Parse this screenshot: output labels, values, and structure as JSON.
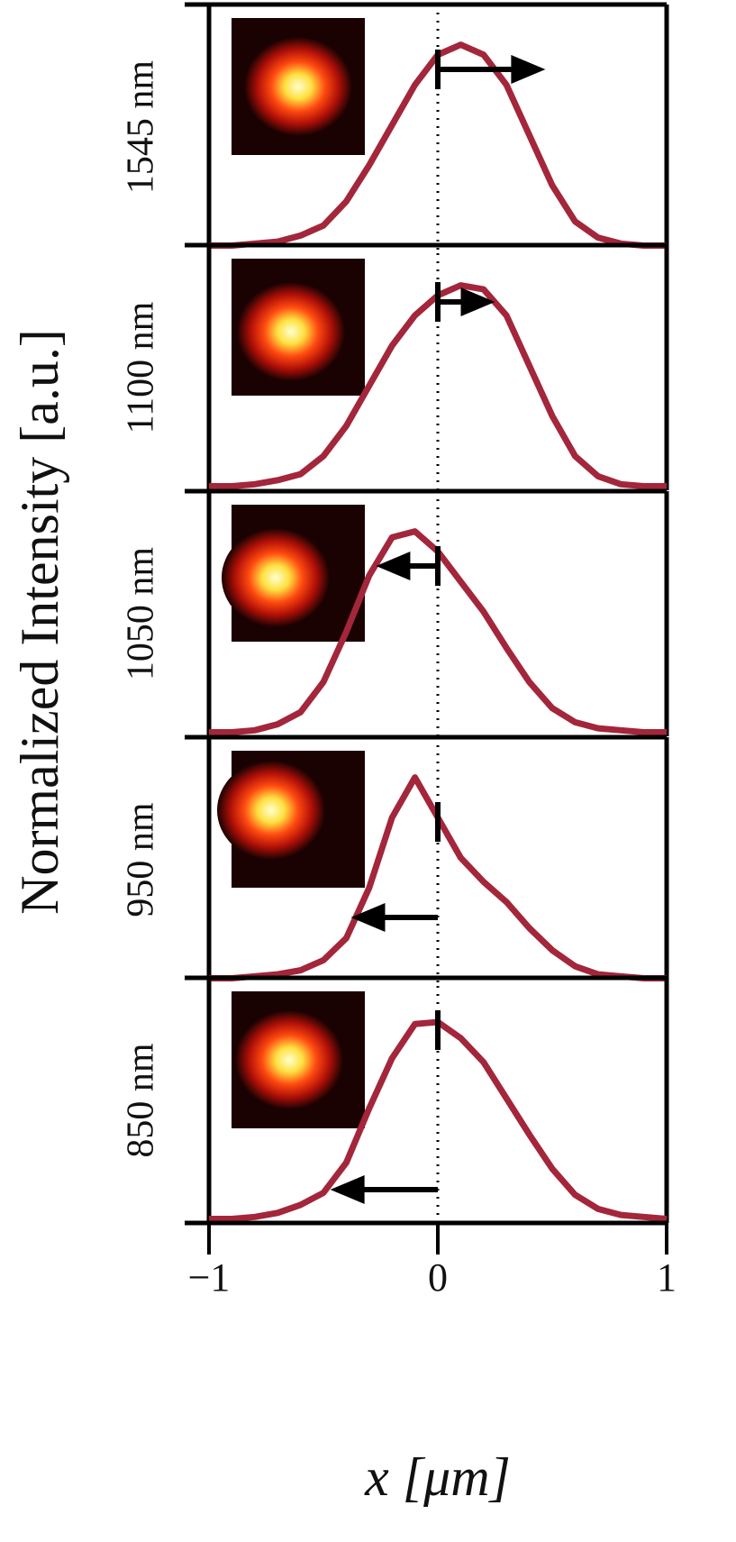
{
  "chart_data": [
    {
      "type": "line",
      "title": "1545 nm",
      "color": "#a3263b",
      "xlim": [
        -1,
        1
      ],
      "ylim": [
        -0.02,
        1.2
      ],
      "vline": 0,
      "shift": 0.47,
      "x": [
        -1,
        -0.9,
        -0.8,
        -0.7,
        -0.6,
        -0.5,
        -0.4,
        -0.3,
        -0.2,
        -0.1,
        0,
        0.1,
        0.2,
        0.3,
        0.4,
        0.5,
        0.6,
        0.7,
        0.8,
        0.9,
        1
      ],
      "values": [
        0,
        0,
        0.01,
        0.02,
        0.05,
        0.1,
        0.22,
        0.4,
        0.6,
        0.8,
        0.95,
        1,
        0.95,
        0.8,
        0.55,
        0.3,
        0.12,
        0.04,
        0.01,
        0,
        0
      ]
    },
    {
      "type": "line",
      "title": "1100 nm",
      "color": "#a3263b",
      "xlim": [
        -1,
        1
      ],
      "ylim": [
        -0.02,
        1.2
      ],
      "vline": 0,
      "shift": 0.25,
      "x": [
        -1,
        -0.9,
        -0.8,
        -0.7,
        -0.6,
        -0.5,
        -0.4,
        -0.3,
        -0.2,
        -0.1,
        0,
        0.1,
        0.2,
        0.3,
        0.4,
        0.5,
        0.6,
        0.7,
        0.8,
        0.9,
        1
      ],
      "values": [
        0,
        0,
        0.01,
        0.03,
        0.06,
        0.15,
        0.3,
        0.5,
        0.7,
        0.85,
        0.95,
        1,
        0.98,
        0.85,
        0.6,
        0.35,
        0.15,
        0.05,
        0.01,
        0,
        0
      ]
    },
    {
      "type": "line",
      "title": "1050 nm",
      "color": "#a3263b",
      "xlim": [
        -1,
        1
      ],
      "ylim": [
        -0.02,
        1.2
      ],
      "vline": 0,
      "shift": -0.27,
      "x": [
        -1,
        -0.9,
        -0.8,
        -0.7,
        -0.6,
        -0.5,
        -0.4,
        -0.3,
        -0.2,
        -0.1,
        0,
        0.1,
        0.2,
        0.3,
        0.4,
        0.5,
        0.6,
        0.7,
        0.8,
        0.9,
        1
      ],
      "values": [
        0,
        0,
        0.01,
        0.04,
        0.1,
        0.25,
        0.5,
        0.78,
        0.97,
        1,
        0.9,
        0.75,
        0.6,
        0.42,
        0.25,
        0.12,
        0.05,
        0.02,
        0.01,
        0,
        0
      ]
    },
    {
      "type": "line",
      "title": "950 nm",
      "color": "#a3263b",
      "xlim": [
        -1,
        1
      ],
      "ylim": [
        -0.02,
        1.2
      ],
      "vline": 0,
      "shift": -0.38,
      "x": [
        -1,
        -0.9,
        -0.8,
        -0.7,
        -0.6,
        -0.5,
        -0.4,
        -0.3,
        -0.2,
        -0.1,
        0,
        0.1,
        0.2,
        0.3,
        0.4,
        0.5,
        0.6,
        0.7,
        0.8,
        0.9,
        1
      ],
      "values": [
        0,
        0,
        0.01,
        0.02,
        0.04,
        0.09,
        0.2,
        0.45,
        0.8,
        1,
        0.8,
        0.6,
        0.48,
        0.38,
        0.25,
        0.14,
        0.06,
        0.02,
        0.01,
        0,
        0
      ]
    },
    {
      "type": "line",
      "title": "850 nm",
      "color": "#a3263b",
      "xlim": [
        -1,
        1
      ],
      "ylim": [
        -0.02,
        1.2
      ],
      "vline": 0,
      "shift": -0.47,
      "x": [
        -1,
        -0.9,
        -0.8,
        -0.7,
        -0.6,
        -0.5,
        -0.4,
        -0.3,
        -0.2,
        -0.1,
        0,
        0.1,
        0.2,
        0.3,
        0.4,
        0.5,
        0.6,
        0.7,
        0.8,
        0.9,
        1
      ],
      "values": [
        0,
        0,
        0.01,
        0.03,
        0.07,
        0.13,
        0.28,
        0.55,
        0.8,
        0.97,
        0.98,
        0.9,
        0.78,
        0.6,
        0.42,
        0.25,
        0.12,
        0.05,
        0.02,
        0.01,
        0
      ],
      "xticks": [
        {
          "value": -1,
          "label": "−1"
        },
        0,
        1
      ],
      "xlabel": "x [μm]",
      "ylabel": "Normalized Intensity [a.u.]"
    }
  ]
}
